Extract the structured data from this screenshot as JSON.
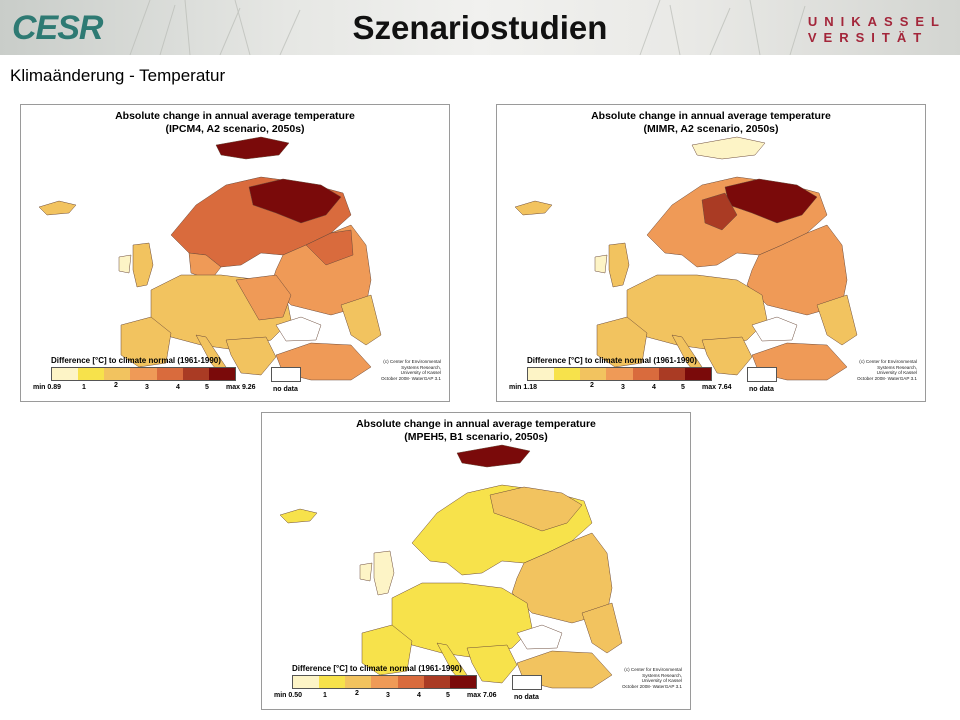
{
  "header": {
    "logo": "CESR",
    "title": "Szenariostudien",
    "university_line1": "UNIKASSEL",
    "university_line2": "VERSITÄT"
  },
  "subtitle": "Klimaänderung - Temperatur",
  "legend_colors": [
    "#fdf4c6",
    "#f7e24b",
    "#f2c35f",
    "#ef9a57",
    "#d96b3d",
    "#aa3b24",
    "#7a0a0a"
  ],
  "maps": [
    {
      "title_line1": "Absolute change in annual average temperature",
      "title_line2": "(IPCM4, A2 scenario, 2050s)",
      "legend_title": "Difference [°C] to climate normal (1961-1990)",
      "min_label": "min 0.89",
      "max_label": "max 9.26",
      "ticks": [
        "1",
        "2",
        "3",
        "4",
        "5"
      ],
      "nodata_label": "no data",
      "credit": [
        "(c) Center for Environmental",
        "Systems Research,",
        "University of Kassel",
        "October 2008- WaterGAP 3.1"
      ]
    },
    {
      "title_line1": "Absolute change in annual average temperature",
      "title_line2": "(MIMR, A2 scenario, 2050s)",
      "legend_title": "Difference [°C] to climate normal (1961-1990)",
      "min_label": "min 1.18",
      "max_label": "max 7.64",
      "ticks": [
        "2",
        "3",
        "4",
        "5"
      ],
      "nodata_label": "no data",
      "credit": [
        "(c) Center for Environmental",
        "Systems Research,",
        "University of Kassel",
        "October 2008- WaterGAP 3.1"
      ]
    },
    {
      "title_line1": "Absolute change in annual average temperature",
      "title_line2": "(MPEH5, B1 scenario, 2050s)",
      "legend_title": "Difference [°C] to climate normal (1961-1990)",
      "min_label": "min 0.50",
      "max_label": "max 7.06",
      "ticks": [
        "1",
        "2",
        "3",
        "4",
        "5"
      ],
      "nodata_label": "no data",
      "credit": [
        "(c) Center for Environmental",
        "Systems Research,",
        "University of Kassel",
        "October 2008- WaterGAP 3.1"
      ]
    }
  ]
}
